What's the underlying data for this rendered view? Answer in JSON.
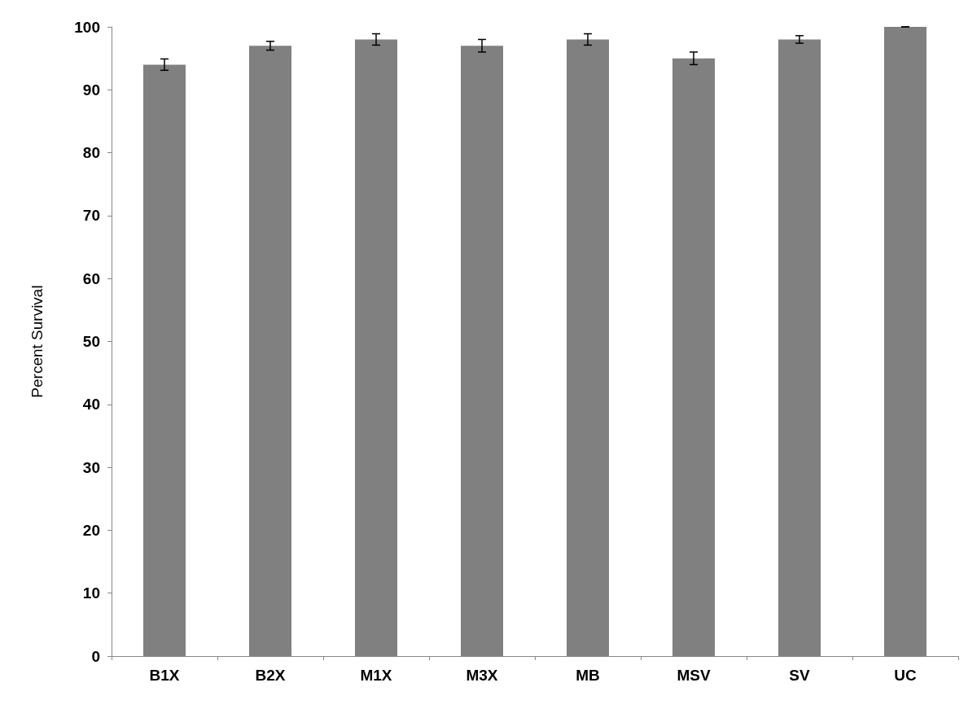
{
  "chart_data": {
    "type": "bar",
    "ylabel": "Percent Survival",
    "categories": [
      "B1X",
      "B2X",
      "M1X",
      "M3X",
      "MB",
      "MSV",
      "SV",
      "UC"
    ],
    "values": [
      94,
      97,
      98,
      97,
      98,
      95,
      98,
      100
    ],
    "errors": [
      0.9,
      0.7,
      0.9,
      1.0,
      0.9,
      1.0,
      0.6,
      0
    ],
    "color": "#808080",
    "ylim": [
      0,
      100
    ],
    "yticks": [
      0,
      10,
      20,
      30,
      40,
      50,
      60,
      70,
      80,
      90,
      100
    ],
    "grid": false
  }
}
